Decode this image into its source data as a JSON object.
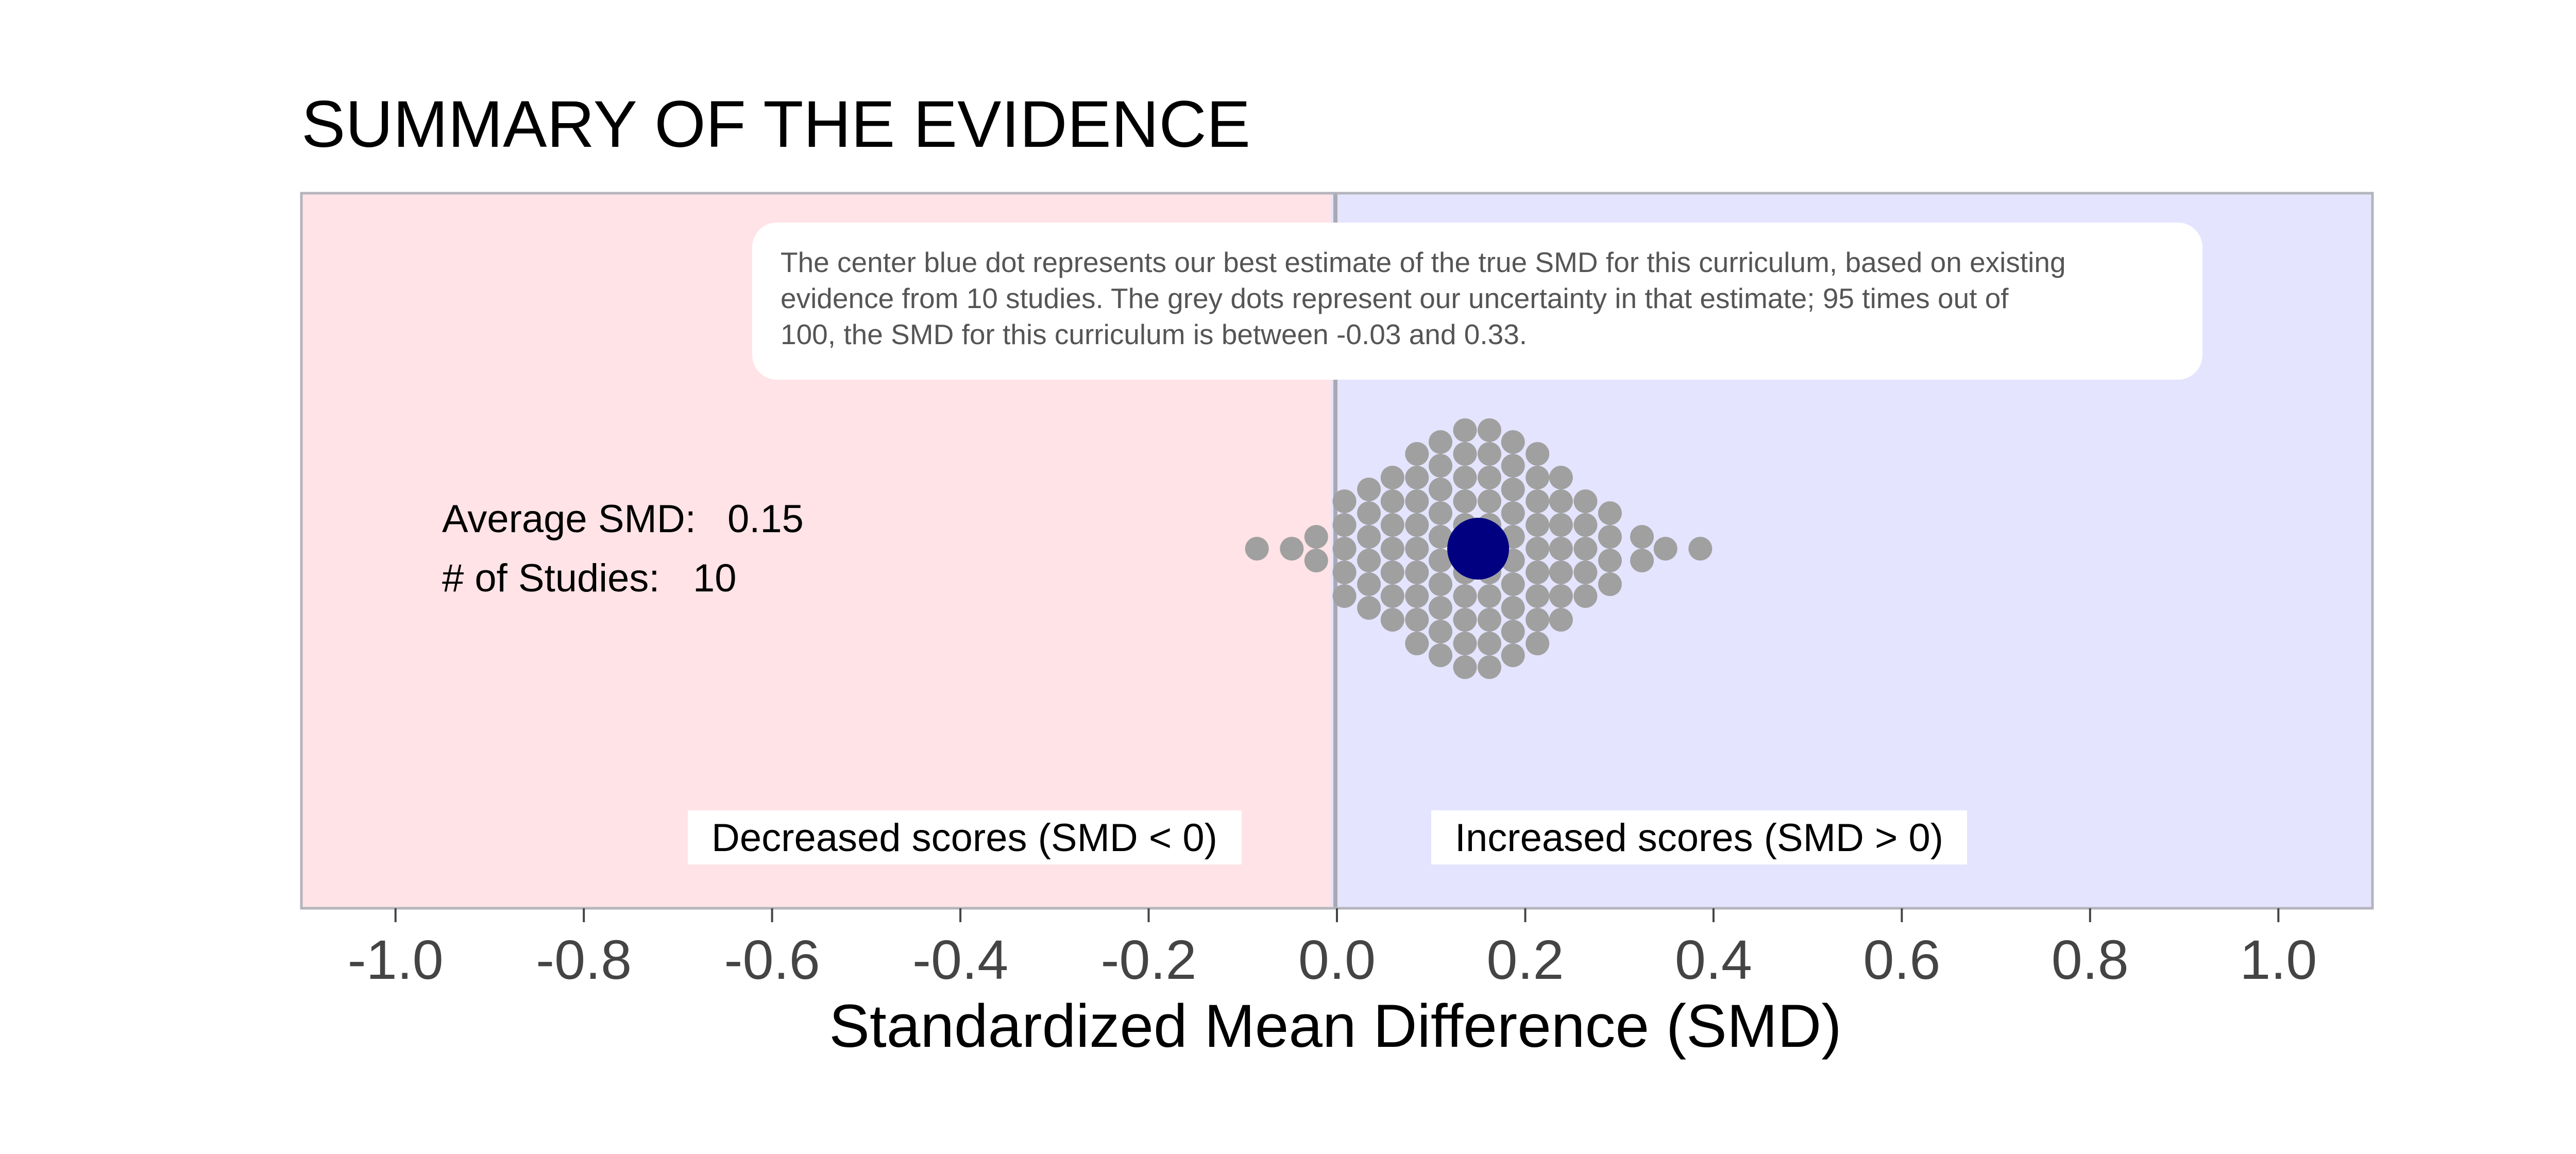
{
  "chart_data": {
    "type": "dotplot",
    "title": "SUMMARY OF THE EVIDENCE",
    "xlabel": "Standardized Mean Difference (SMD)",
    "xlim": [
      -1.1,
      1.1
    ],
    "x_ticks": [
      -1.0,
      -0.8,
      -0.6,
      -0.4,
      -0.2,
      0.0,
      0.2,
      0.4,
      0.6,
      0.8,
      1.0
    ],
    "x_tick_labels": [
      "-1.0",
      "-0.8",
      "-0.6",
      "-0.4",
      "-0.2",
      "0.0",
      "0.2",
      "0.4",
      "0.6",
      "0.8",
      "1.0"
    ],
    "grid": false,
    "estimate": 0.15,
    "ci": [
      -0.03,
      0.33
    ],
    "studies": 10,
    "estimate_color": "#000080",
    "dot_color": "#a0a0a0",
    "negative_region_color": "#ffe3e6",
    "positive_region_color": "#e4e4ff",
    "stats": {
      "average_label": "Average SMD:",
      "average_value": "0.15",
      "studies_label": "# of Studies:",
      "studies_value": "10"
    },
    "annotation": {
      "line1": "The center blue dot represents our best estimate of the true SMD for this curriculum, based on existing",
      "line2": "evidence from 10 studies. The grey dots represent our uncertainty in that estimate; 95 times out of",
      "line3": "100, the SMD for this curriculum is between -0.03 and 0.33."
    },
    "region_labels": {
      "negative": "Decreased scores (SMD < 0)",
      "positive": "Increased scores (SMD > 0)"
    },
    "dot_columns": [
      {
        "x": -0.085,
        "count": 1
      },
      {
        "x": -0.048,
        "count": 1
      },
      {
        "x": -0.022,
        "count": 2
      },
      {
        "x": 0.008,
        "count": 5
      },
      {
        "x": 0.034,
        "count": 6
      },
      {
        "x": 0.059,
        "count": 7
      },
      {
        "x": 0.085,
        "count": 9
      },
      {
        "x": 0.11,
        "count": 10
      },
      {
        "x": 0.136,
        "count": 11
      },
      {
        "x": 0.162,
        "count": 11
      },
      {
        "x": 0.187,
        "count": 10
      },
      {
        "x": 0.213,
        "count": 9
      },
      {
        "x": 0.238,
        "count": 7
      },
      {
        "x": 0.264,
        "count": 5
      },
      {
        "x": 0.29,
        "count": 4
      },
      {
        "x": 0.324,
        "count": 2
      },
      {
        "x": 0.349,
        "count": 1
      },
      {
        "x": 0.386,
        "count": 1
      }
    ]
  }
}
